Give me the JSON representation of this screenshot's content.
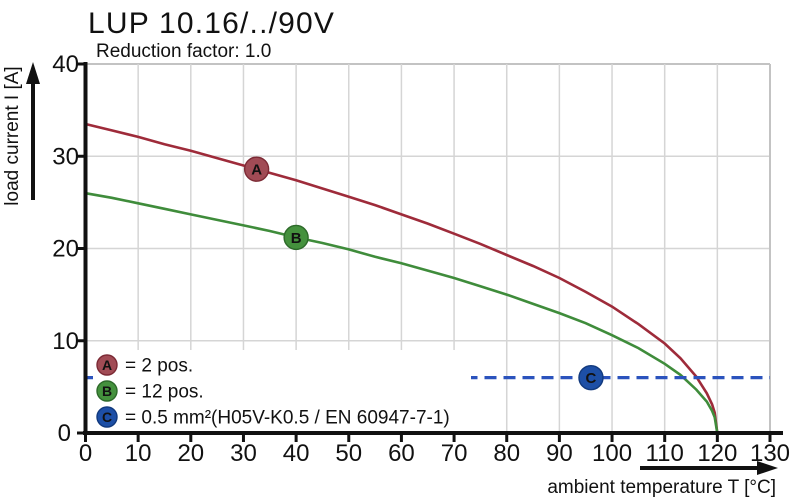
{
  "chart_data": {
    "type": "line",
    "title": "LUP 10.16/../90V",
    "subtitle": "Reduction factor: 1.0",
    "xlabel": "ambient temperature T [°C]",
    "ylabel": "load current I [A]",
    "xlim": [
      0,
      130
    ],
    "ylim": [
      0,
      40
    ],
    "xticks": [
      0,
      10,
      20,
      30,
      40,
      50,
      60,
      70,
      80,
      90,
      100,
      110,
      120,
      130
    ],
    "yticks": [
      0,
      10,
      20,
      30,
      40
    ],
    "grid": true,
    "grid_color": "#d5d5d5",
    "frame_color": "#c3c3c3",
    "axis_color": "#111111",
    "legend_position": "bottom-left",
    "series": [
      {
        "id": "A",
        "label": "= 2 pos.",
        "kind": "curve",
        "color": "#9e2b3a",
        "marker": {
          "x": 32.5,
          "y": 28.6,
          "fill": "#a14b55",
          "stroke": "#7c2a35"
        },
        "points": [
          [
            0,
            33.5
          ],
          [
            5,
            32.8
          ],
          [
            10,
            32.1
          ],
          [
            15,
            31.3
          ],
          [
            20,
            30.6
          ],
          [
            25,
            29.8
          ],
          [
            30,
            29.0
          ],
          [
            35,
            28.2
          ],
          [
            40,
            27.4
          ],
          [
            45,
            26.5
          ],
          [
            50,
            25.6
          ],
          [
            55,
            24.7
          ],
          [
            60,
            23.7
          ],
          [
            65,
            22.7
          ],
          [
            70,
            21.6
          ],
          [
            75,
            20.5
          ],
          [
            80,
            19.3
          ],
          [
            85,
            18.1
          ],
          [
            90,
            16.8
          ],
          [
            95,
            15.3
          ],
          [
            100,
            13.7
          ],
          [
            105,
            11.8
          ],
          [
            110,
            9.7
          ],
          [
            113,
            8.1
          ],
          [
            116,
            6.1
          ],
          [
            118,
            4.3
          ],
          [
            119,
            3.1
          ],
          [
            119.5,
            2.2
          ],
          [
            120,
            0
          ]
        ]
      },
      {
        "id": "B",
        "label": "= 12 pos.",
        "kind": "curve",
        "color": "#3f8c3b",
        "marker": {
          "x": 40,
          "y": 21.2,
          "fill": "#44913d",
          "stroke": "#2d6a2a"
        },
        "points": [
          [
            0,
            26.0
          ],
          [
            5,
            25.5
          ],
          [
            10,
            24.9
          ],
          [
            15,
            24.3
          ],
          [
            20,
            23.7
          ],
          [
            25,
            23.1
          ],
          [
            30,
            22.5
          ],
          [
            35,
            21.9
          ],
          [
            40,
            21.2
          ],
          [
            45,
            20.6
          ],
          [
            50,
            19.9
          ],
          [
            55,
            19.1
          ],
          [
            60,
            18.4
          ],
          [
            65,
            17.6
          ],
          [
            70,
            16.8
          ],
          [
            75,
            15.9
          ],
          [
            80,
            15.0
          ],
          [
            85,
            14.0
          ],
          [
            90,
            13.0
          ],
          [
            95,
            11.9
          ],
          [
            100,
            10.6
          ],
          [
            105,
            9.2
          ],
          [
            110,
            7.5
          ],
          [
            113,
            6.3
          ],
          [
            116,
            4.7
          ],
          [
            118,
            3.4
          ],
          [
            119,
            2.4
          ],
          [
            119.5,
            1.7
          ],
          [
            120,
            0
          ]
        ]
      },
      {
        "id": "C",
        "label": "= 0.5 mm²(H05V-K0.5 / EN 60947-7-1)",
        "kind": "hline",
        "y": 6,
        "line_style": "dashed",
        "color": "#2b53bd",
        "marker": {
          "x": 96,
          "y": 6,
          "fill": "#1d4fa6",
          "stroke": "#123a7e"
        }
      }
    ]
  }
}
